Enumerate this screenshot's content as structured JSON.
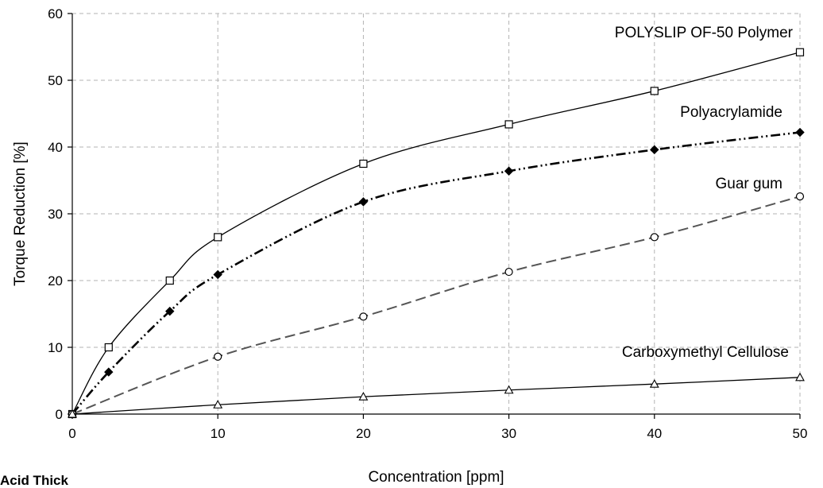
{
  "chart_data": {
    "type": "line",
    "xlabel": "Concentration [ppm]",
    "ylabel": "Torque Reduction [%]",
    "xlim": [
      0,
      50
    ],
    "ylim": [
      0,
      60
    ],
    "xticks": [
      0,
      10,
      20,
      30,
      40,
      50
    ],
    "yticks": [
      0,
      10,
      20,
      30,
      40,
      50,
      60
    ],
    "grid": true,
    "series": [
      {
        "name": "POLYSLIP OF-50 Polymer",
        "marker": "open-square",
        "line_style": "solid",
        "points": [
          [
            0,
            0
          ],
          [
            2.5,
            10
          ],
          [
            6.7,
            20
          ],
          [
            10,
            26.5
          ],
          [
            20,
            37.5
          ],
          [
            30,
            43.4
          ],
          [
            40,
            48.4
          ],
          [
            50,
            54.2
          ]
        ]
      },
      {
        "name": "Polyacrylamide",
        "marker": "filled-diamond",
        "line_style": "dash-dot-dot",
        "points": [
          [
            0,
            0
          ],
          [
            2.5,
            6.3
          ],
          [
            6.7,
            15.4
          ],
          [
            10,
            20.9
          ],
          [
            20,
            31.8
          ],
          [
            30,
            36.4
          ],
          [
            40,
            39.6
          ],
          [
            50,
            42.2
          ]
        ]
      },
      {
        "name": "Guar gum",
        "marker": "open-circle",
        "line_style": "dashed",
        "points": [
          [
            0,
            0
          ],
          [
            10,
            8.6
          ],
          [
            20,
            14.6
          ],
          [
            30,
            21.3
          ],
          [
            40,
            26.5
          ],
          [
            50,
            32.6
          ]
        ]
      },
      {
        "name": "Carboxymethyl Cellulose",
        "marker": "open-triangle",
        "line_style": "solid",
        "points": [
          [
            0,
            0
          ],
          [
            10,
            1.4
          ],
          [
            20,
            2.6
          ],
          [
            30,
            3.6
          ],
          [
            40,
            4.5
          ],
          [
            50,
            5.5
          ]
        ]
      }
    ],
    "footer_text": "Acid Thick"
  }
}
